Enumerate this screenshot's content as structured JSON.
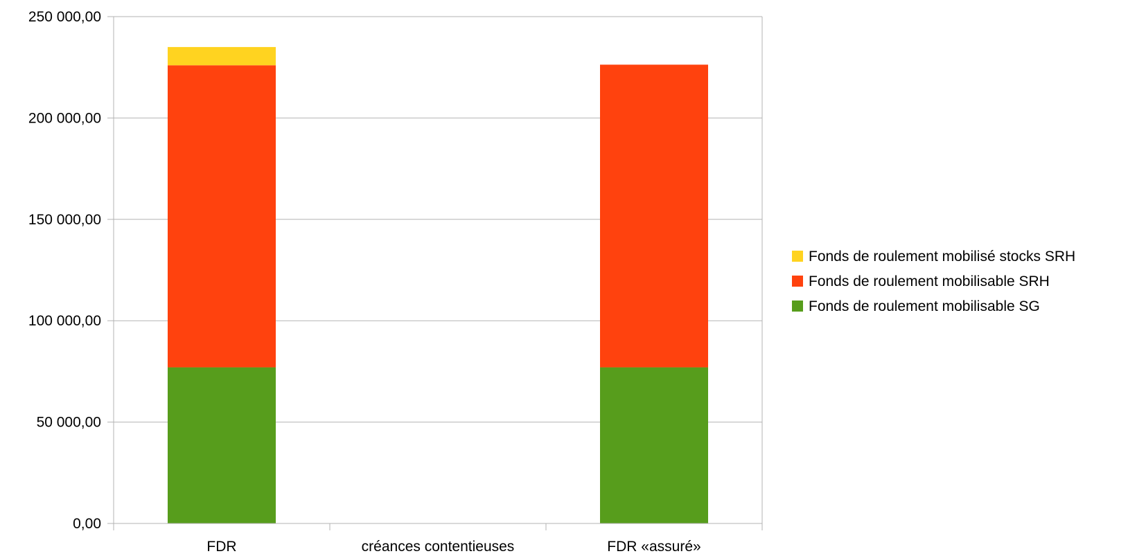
{
  "chart_data": {
    "type": "bar",
    "stacked": true,
    "categories": [
      "FDR",
      "créances contentieuses",
      "FDR «assuré»"
    ],
    "series": [
      {
        "name": "Fonds de roulement mobilisable SG",
        "color": "#579D1C",
        "values": [
          77000,
          0,
          77000
        ]
      },
      {
        "name": "Fonds de roulement mobilisable SRH",
        "color": "#FF420E",
        "values": [
          149000,
          0,
          149300
        ]
      },
      {
        "name": "Fonds de roulement mobilisé stocks SRH",
        "color": "#FFD320",
        "values": [
          9000,
          0,
          0
        ]
      }
    ],
    "legend_order": [
      2,
      1,
      0
    ],
    "yticks": [
      "0,00",
      "50 000,00",
      "100 000,00",
      "150 000,00",
      "200 000,00",
      "250 000,00"
    ],
    "ylim": [
      0,
      250000
    ],
    "ytick_step": 50000,
    "grid": true,
    "legend_position": "right"
  }
}
